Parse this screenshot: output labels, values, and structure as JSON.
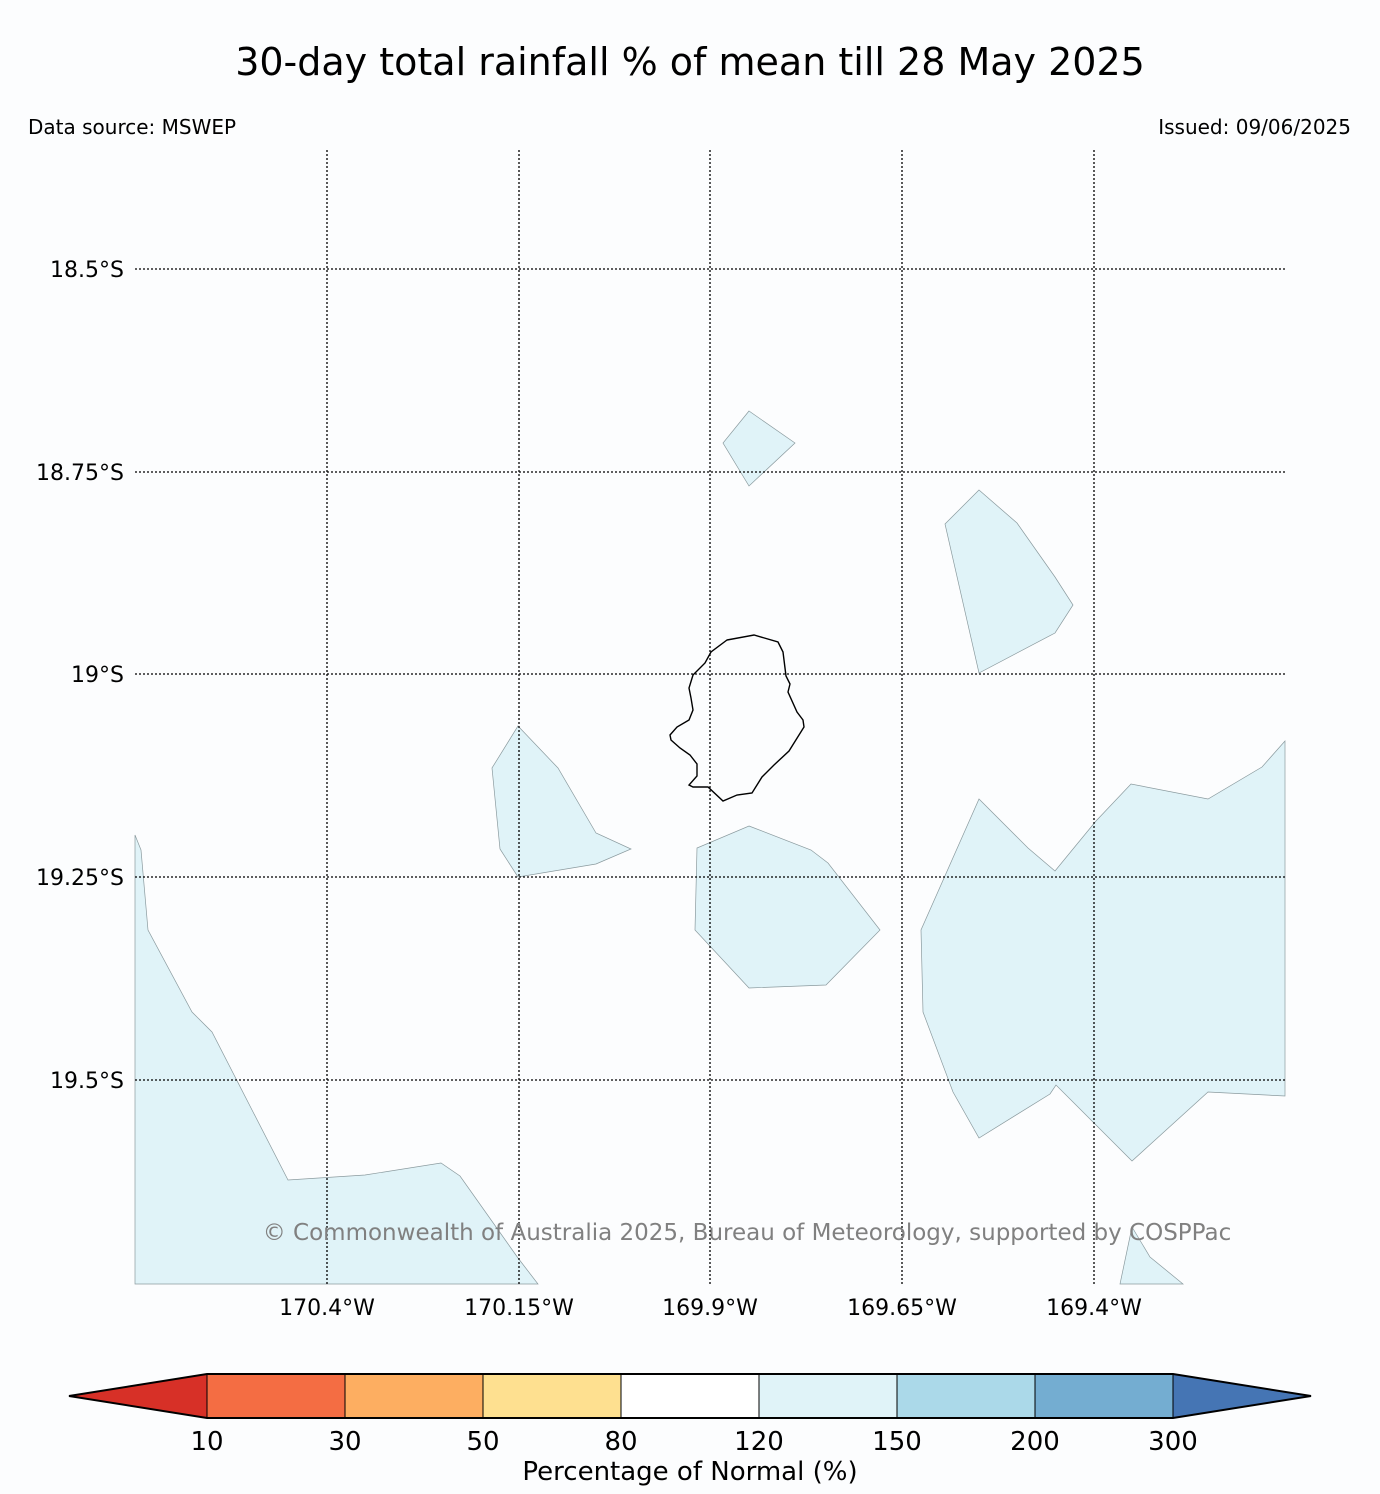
{
  "header": {
    "title": "30-day total rainfall % of mean till 28 May 2025",
    "data_source": "Data source: MSWEP",
    "issued": "Issued: 09/06/2025"
  },
  "map": {
    "latitude_labels": [
      "18.5°S",
      "18.75°S",
      "19°S",
      "19.25°S",
      "19.5°S"
    ],
    "longitude_labels": [
      "170.4°W",
      "170.15°W",
      "169.9°W",
      "169.65°W",
      "169.4°W"
    ],
    "copyright": "© Commonwealth of Australia 2025, Bureau of Meteorology, supported by COSPPac",
    "background_color": "#fcfdfe",
    "fill_color_120_150": "#e0f3f8",
    "region_category": "120–150"
  },
  "colorbar": {
    "label": "Percentage of Normal (%)",
    "ticks": [
      "10",
      "30",
      "50",
      "80",
      "120",
      "150",
      "200",
      "300"
    ],
    "colors": [
      "#d73027",
      "#f46d43",
      "#fdae61",
      "#fee090",
      "#ffffff",
      "#e0f3f8",
      "#abd9e9",
      "#74add1",
      "#4575b4"
    ]
  }
}
